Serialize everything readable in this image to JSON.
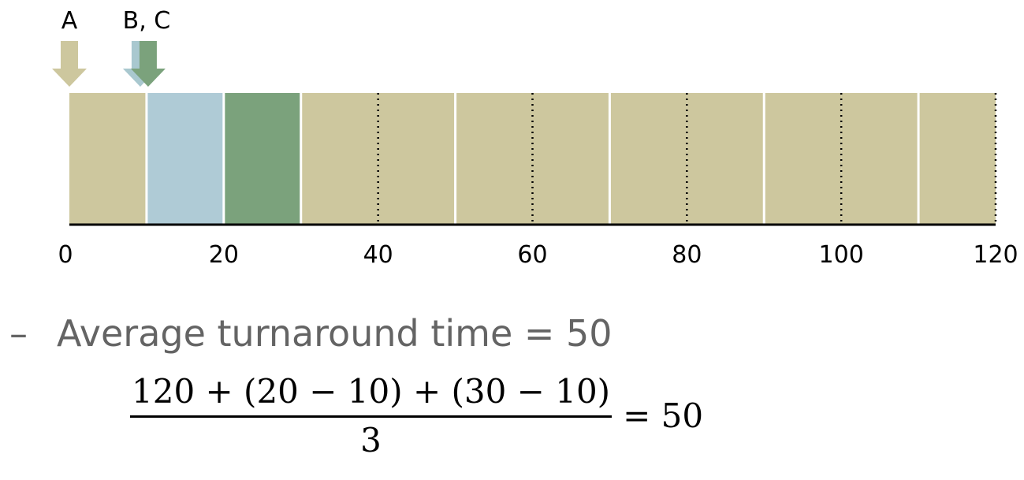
{
  "colors": {
    "A": "#cdc79e",
    "B": "#afcbd6",
    "C": "#7ba27c",
    "B_arrow": "#a9c8cf",
    "axis": "#000000",
    "text_gray": "#646464"
  },
  "chart_data": {
    "type": "gantt",
    "xlim": [
      0,
      120
    ],
    "ticks": [
      0,
      20,
      40,
      60,
      80,
      100,
      120
    ],
    "tick_labels": [
      "0",
      "20",
      "40",
      "60",
      "80",
      "100",
      "120"
    ],
    "time_slice": 10,
    "segments": [
      {
        "job": "A",
        "start": 0,
        "end": 10
      },
      {
        "job": "B",
        "start": 10,
        "end": 20
      },
      {
        "job": "C",
        "start": 20,
        "end": 30
      },
      {
        "job": "A",
        "start": 30,
        "end": 40
      },
      {
        "job": "A",
        "start": 40,
        "end": 50
      },
      {
        "job": "A",
        "start": 50,
        "end": 60
      },
      {
        "job": "A",
        "start": 60,
        "end": 70
      },
      {
        "job": "A",
        "start": 70,
        "end": 80
      },
      {
        "job": "A",
        "start": 80,
        "end": 90
      },
      {
        "job": "A",
        "start": 90,
        "end": 100
      },
      {
        "job": "A",
        "start": 100,
        "end": 110
      },
      {
        "job": "A",
        "start": 110,
        "end": 120
      }
    ],
    "arrivals": [
      {
        "label": "A",
        "time": 0
      },
      {
        "label": "B, C",
        "time": 10
      }
    ]
  },
  "text": {
    "bullet_dash": "–",
    "bullet": "Average turnaround time = 50",
    "numerator": "120 + (20 − 10) + (30 − 10)",
    "denominator": "3",
    "rhs": "= 50"
  }
}
